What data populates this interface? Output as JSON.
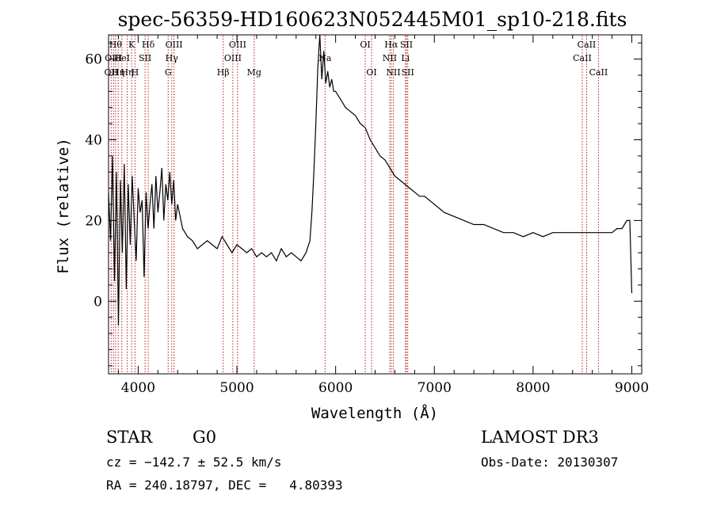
{
  "chart_data": {
    "type": "line",
    "title": "spec-56359-HD160623N052445M01_sp10-218.fits",
    "xlabel": "Wavelength (Å)",
    "ylabel": "Flux (relative)",
    "xlim": [
      3700,
      9100
    ],
    "ylim": [
      -18,
      66
    ],
    "x_ticks": [
      {
        "value": 4000,
        "label": "4000"
      },
      {
        "value": 5000,
        "label": "5000"
      },
      {
        "value": 6000,
        "label": "6000"
      },
      {
        "value": 7000,
        "label": "7000"
      },
      {
        "value": 8000,
        "label": "8000"
      },
      {
        "value": 9000,
        "label": "9000"
      }
    ],
    "y_ticks": [
      {
        "value": 0,
        "label": "0"
      },
      {
        "value": 20,
        "label": "20"
      },
      {
        "value": 40,
        "label": "40"
      },
      {
        "value": 60,
        "label": "60"
      }
    ],
    "line_color": "#000000",
    "marker_color": "#b22222",
    "grid": false,
    "series": [
      {
        "x": [
          3700,
          3720,
          3740,
          3760,
          3780,
          3800,
          3820,
          3840,
          3860,
          3880,
          3900,
          3920,
          3940,
          3960,
          3980,
          4000,
          4020,
          4040,
          4060,
          4080,
          4100,
          4120,
          4140,
          4160,
          4180,
          4200,
          4220,
          4240,
          4260,
          4280,
          4300,
          4320,
          4340,
          4360,
          4380,
          4400,
          4450,
          4500,
          4550,
          4600,
          4650,
          4700,
          4750,
          4800,
          4850,
          4900,
          4950,
          5000,
          5050,
          5100,
          5150,
          5200,
          5250,
          5300,
          5350,
          5400,
          5450,
          5500,
          5550,
          5600,
          5650,
          5700,
          5740,
          5760,
          5780,
          5800,
          5820,
          5840,
          5860,
          5880,
          5900,
          5920,
          5940,
          5960,
          5980,
          6000,
          6050,
          6100,
          6150,
          6200,
          6250,
          6300,
          6350,
          6400,
          6450,
          6500,
          6550,
          6600,
          6650,
          6700,
          6750,
          6800,
          6850,
          6900,
          6950,
          7000,
          7100,
          7200,
          7300,
          7400,
          7500,
          7600,
          7700,
          7800,
          7900,
          8000,
          8100,
          8200,
          8300,
          8400,
          8500,
          8600,
          8700,
          8800,
          8850,
          8900,
          8950,
          8980,
          9000
        ],
        "y": [
          27,
          15,
          36,
          5,
          32,
          -6,
          30,
          12,
          34,
          3,
          29,
          14,
          31,
          20,
          10,
          28,
          22,
          25,
          6,
          27,
          18,
          24,
          29,
          18,
          31,
          22,
          27,
          33,
          20,
          29,
          25,
          32,
          24,
          30,
          20,
          24,
          18,
          16,
          15,
          13,
          14,
          15,
          14,
          13,
          16,
          14,
          12,
          14,
          13,
          12,
          13,
          11,
          12,
          11,
          12,
          10,
          13,
          11,
          12,
          11,
          10,
          12,
          15,
          22,
          32,
          44,
          58,
          66,
          55,
          62,
          54,
          57,
          53,
          55,
          52,
          52,
          50,
          48,
          47,
          46,
          44,
          43,
          40,
          38,
          36,
          35,
          33,
          31,
          30,
          29,
          28,
          27,
          26,
          26,
          25,
          24,
          22,
          21,
          20,
          19,
          19,
          18,
          17,
          17,
          16,
          17,
          16,
          17,
          17,
          17,
          17,
          17,
          17,
          17,
          18,
          18,
          20,
          20,
          2
        ]
      }
    ],
    "line_markers": [
      {
        "wl": 3727,
        "label": "OII",
        "row": 3
      },
      {
        "wl": 3750,
        "label": "OIII",
        "row": 2
      },
      {
        "wl": 3771,
        "label": "Hθ",
        "row": 1
      },
      {
        "wl": 3798,
        "label": "Hη",
        "row": 3
      },
      {
        "wl": 3835,
        "label": "HeI",
        "row": 2
      },
      {
        "wl": 3889,
        "label": "Hη",
        "row": 3
      },
      {
        "wl": 3934,
        "label": "K",
        "row": 1
      },
      {
        "wl": 3968,
        "label": "H",
        "row": 3
      },
      {
        "wl": 4070,
        "label": "SII",
        "row": 2
      },
      {
        "wl": 4102,
        "label": "Hδ",
        "row": 1
      },
      {
        "wl": 4304,
        "label": "G",
        "row": 3
      },
      {
        "wl": 4340,
        "label": "Hγ",
        "row": 2
      },
      {
        "wl": 4363,
        "label": "OIII",
        "row": 1
      },
      {
        "wl": 4861,
        "label": "Hβ",
        "row": 3
      },
      {
        "wl": 4959,
        "label": "OIII",
        "row": 2
      },
      {
        "wl": 5007,
        "label": "OIII",
        "row": 1
      },
      {
        "wl": 5175,
        "label": "Mg",
        "row": 3
      },
      {
        "wl": 5893,
        "label": "Na",
        "row": 2
      },
      {
        "wl": 6300,
        "label": "OI",
        "row": 1
      },
      {
        "wl": 6364,
        "label": "OI",
        "row": 3
      },
      {
        "wl": 6548,
        "label": "NII",
        "row": 2
      },
      {
        "wl": 6563,
        "label": "Hα",
        "row": 1
      },
      {
        "wl": 6584,
        "label": "NII",
        "row": 3
      },
      {
        "wl": 6707,
        "label": "Li",
        "row": 2
      },
      {
        "wl": 6717,
        "label": "SII",
        "row": 1
      },
      {
        "wl": 6731,
        "label": "SII",
        "row": 3
      },
      {
        "wl": 8498,
        "label": "CaII",
        "row": 2
      },
      {
        "wl": 8542,
        "label": "CaII",
        "row": 1
      },
      {
        "wl": 8662,
        "label": "CaII",
        "row": 3
      }
    ]
  },
  "info": {
    "class": "STAR",
    "subclass": "G0",
    "survey": "LAMOST DR3",
    "cz": "cz = −142.7 ± 52.5 km/s",
    "obs_date": "Obs-Date: 20130307",
    "coords": "RA = 240.18797, DEC =   4.80393"
  }
}
